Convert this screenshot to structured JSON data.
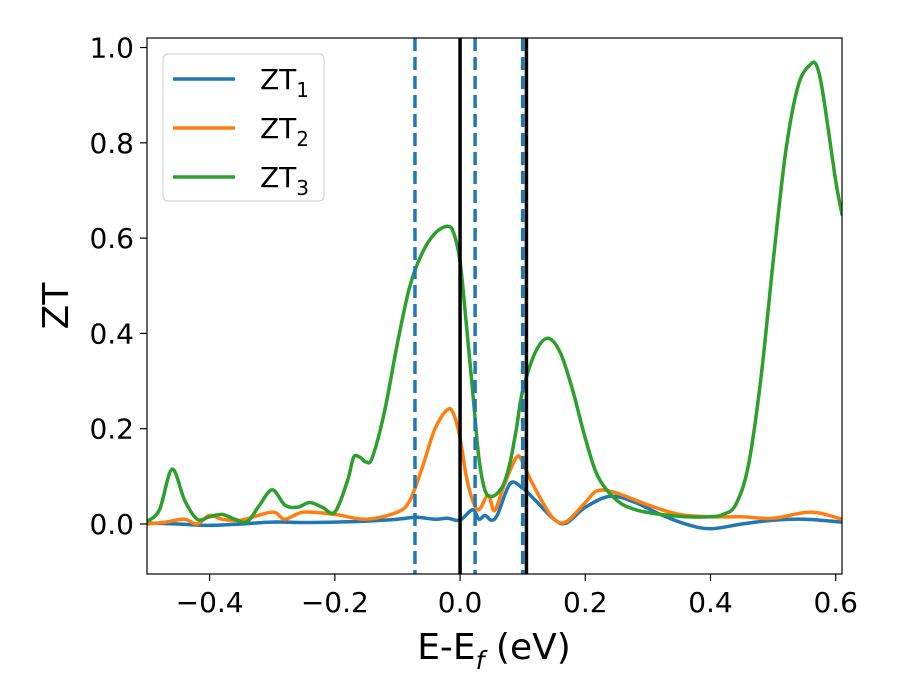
{
  "chart_data": {
    "type": "line",
    "xlabel": {
      "main": "E-E",
      "sub": "f",
      "unit": " (eV)"
    },
    "ylabel": "ZT",
    "xlim": [
      -0.5,
      0.61
    ],
    "ylim": [
      -0.105,
      1.02
    ],
    "x_ticks": [
      -0.4,
      -0.2,
      0.0,
      0.2,
      0.4,
      0.6
    ],
    "x_tick_labels": [
      "−0.4",
      "−0.2",
      "0.0",
      "0.2",
      "0.4",
      "0.6"
    ],
    "y_ticks": [
      0.0,
      0.2,
      0.4,
      0.6,
      0.8,
      1.0
    ],
    "y_tick_labels": [
      "0.0",
      "0.2",
      "0.4",
      "0.6",
      "0.8",
      "1.0"
    ],
    "grid": false,
    "legend_position": "top-left",
    "vertical_lines": [
      {
        "x": -0.072,
        "style": "dashed",
        "color": "#1f77b4"
      },
      {
        "x": 0.0,
        "style": "solid",
        "color": "#000000"
      },
      {
        "x": 0.024,
        "style": "dashed",
        "color": "#1f77b4"
      },
      {
        "x": 0.1,
        "style": "dashed",
        "color": "#1f77b4"
      },
      {
        "x": 0.106,
        "style": "solid",
        "color": "#000000"
      }
    ],
    "series": [
      {
        "name": "ZT",
        "sub": "1",
        "color": "#1f77b4",
        "x": [
          -0.5,
          -0.45,
          -0.4,
          -0.35,
          -0.3,
          -0.25,
          -0.2,
          -0.15,
          -0.1,
          -0.07,
          -0.04,
          -0.02,
          0.0,
          0.02,
          0.03,
          0.04,
          0.05,
          0.06,
          0.08,
          0.1,
          0.12,
          0.15,
          0.17,
          0.2,
          0.24,
          0.28,
          0.32,
          0.36,
          0.4,
          0.45,
          0.5,
          0.55,
          0.61
        ],
        "y": [
          0.002,
          0.0,
          -0.003,
          0.0,
          0.004,
          0.003,
          0.004,
          0.006,
          0.01,
          0.014,
          0.01,
          0.012,
          0.008,
          0.03,
          0.01,
          0.018,
          0.008,
          0.02,
          0.085,
          0.075,
          0.05,
          0.01,
          0.002,
          0.035,
          0.058,
          0.045,
          0.02,
          0.0,
          -0.01,
          0.0,
          0.008,
          0.01,
          0.004
        ]
      },
      {
        "name": "ZT",
        "sub": "2",
        "color": "#ff7f0e",
        "x": [
          -0.5,
          -0.47,
          -0.44,
          -0.42,
          -0.4,
          -0.38,
          -0.35,
          -0.3,
          -0.28,
          -0.25,
          -0.2,
          -0.15,
          -0.1,
          -0.08,
          -0.06,
          -0.04,
          -0.02,
          -0.01,
          0.0,
          0.01,
          0.02,
          0.03,
          0.045,
          0.055,
          0.07,
          0.09,
          0.1,
          0.11,
          0.13,
          0.15,
          0.17,
          0.2,
          0.22,
          0.25,
          0.3,
          0.35,
          0.4,
          0.45,
          0.5,
          0.56,
          0.61
        ],
        "y": [
          0.0,
          0.004,
          0.01,
          0.0,
          0.018,
          0.01,
          0.008,
          0.025,
          0.01,
          0.025,
          0.02,
          0.01,
          0.025,
          0.05,
          0.12,
          0.2,
          0.24,
          0.23,
          0.18,
          0.1,
          0.05,
          0.03,
          0.06,
          0.028,
          0.08,
          0.14,
          0.13,
          0.1,
          0.05,
          0.01,
          0.005,
          0.045,
          0.07,
          0.065,
          0.04,
          0.02,
          0.015,
          0.015,
          0.012,
          0.025,
          0.01
        ]
      },
      {
        "name": "ZT",
        "sub": "3",
        "color": "#2ca02c",
        "x": [
          -0.5,
          -0.48,
          -0.46,
          -0.44,
          -0.42,
          -0.4,
          -0.38,
          -0.36,
          -0.34,
          -0.32,
          -0.3,
          -0.28,
          -0.26,
          -0.24,
          -0.22,
          -0.2,
          -0.18,
          -0.17,
          -0.16,
          -0.15,
          -0.14,
          -0.12,
          -0.1,
          -0.08,
          -0.06,
          -0.04,
          -0.02,
          -0.01,
          0.0,
          0.01,
          0.02,
          0.03,
          0.04,
          0.05,
          0.06,
          0.07,
          0.08,
          0.09,
          0.1,
          0.12,
          0.14,
          0.16,
          0.18,
          0.2,
          0.22,
          0.25,
          0.28,
          0.32,
          0.36,
          0.4,
          0.42,
          0.44,
          0.46,
          0.48,
          0.5,
          0.52,
          0.54,
          0.56,
          0.57,
          0.58,
          0.6,
          0.61
        ],
        "y": [
          0.005,
          0.03,
          0.115,
          0.05,
          0.01,
          0.015,
          0.02,
          0.01,
          0.005,
          0.04,
          0.072,
          0.04,
          0.035,
          0.045,
          0.035,
          0.025,
          0.09,
          0.14,
          0.14,
          0.13,
          0.14,
          0.24,
          0.38,
          0.5,
          0.57,
          0.61,
          0.625,
          0.61,
          0.55,
          0.42,
          0.28,
          0.14,
          0.07,
          0.058,
          0.065,
          0.085,
          0.13,
          0.2,
          0.28,
          0.36,
          0.39,
          0.36,
          0.28,
          0.18,
          0.1,
          0.05,
          0.03,
          0.02,
          0.015,
          0.015,
          0.02,
          0.04,
          0.12,
          0.3,
          0.55,
          0.78,
          0.92,
          0.965,
          0.96,
          0.9,
          0.72,
          0.65
        ]
      }
    ]
  }
}
